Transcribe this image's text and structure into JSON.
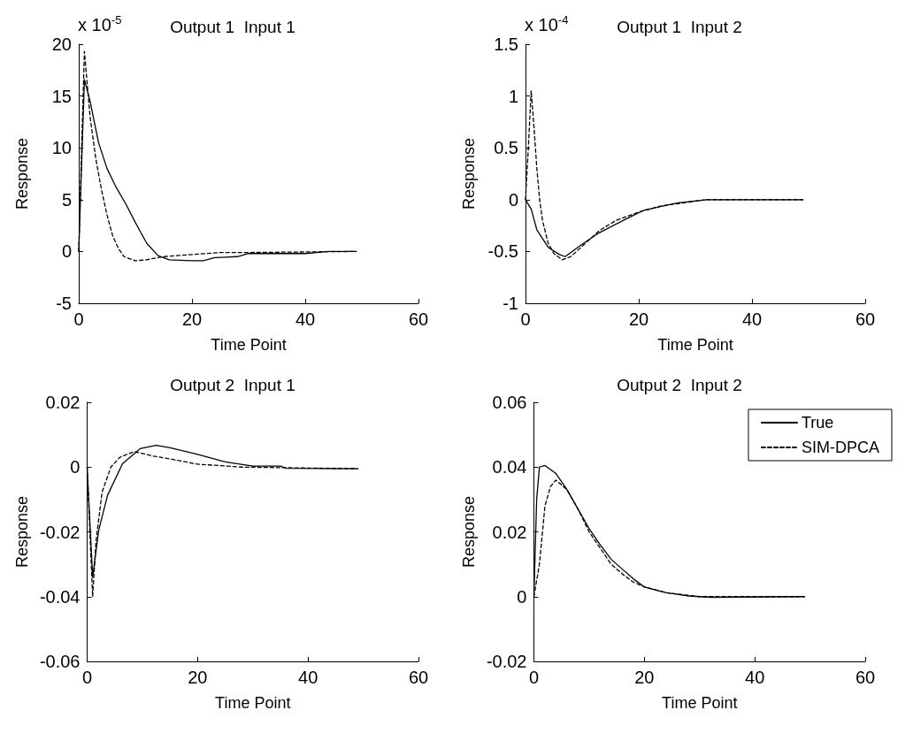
{
  "chart_data": [
    {
      "type": "line",
      "title": "Output 1  Input 1",
      "xlabel": "Time Point",
      "ylabel": "Response",
      "annotations": [
        "x 10$^{-5}$"
      ],
      "xlim": [
        0,
        60
      ],
      "xticks": [
        0,
        20,
        40,
        60
      ],
      "ylim": [
        -5,
        20
      ],
      "yticks": [
        -5,
        0,
        5,
        10,
        15,
        20
      ],
      "grid": false,
      "legend": false,
      "series": [
        {
          "color": "#000000",
          "line_style": "solid",
          "x": [
            0,
            1,
            2,
            3.5,
            5,
            6.5,
            8.3,
            10,
            12,
            14,
            16,
            20,
            22,
            24,
            28,
            30,
            40,
            44,
            49
          ],
          "values": [
            0,
            16.6,
            14.5,
            10.5,
            8,
            6.3,
            4.6,
            2.8,
            0.8,
            -0.4,
            -0.8,
            -0.9,
            -0.9,
            -0.6,
            -0.5,
            -0.2,
            -0.2,
            0,
            0
          ]
        },
        {
          "color": "#000000",
          "line_style": "dashed",
          "x": [
            0,
            1,
            2,
            3,
            4,
            5,
            6,
            7,
            8,
            10,
            12,
            15,
            20,
            25,
            30,
            49
          ],
          "values": [
            0,
            19.3,
            13,
            9,
            6,
            3.5,
            1.5,
            0.3,
            -0.5,
            -0.9,
            -0.8,
            -0.5,
            -0.3,
            -0.1,
            -0.1,
            0
          ]
        }
      ]
    },
    {
      "type": "line",
      "title": "Output 1  Input 2",
      "xlabel": "Time Point",
      "ylabel": "Response",
      "annotations": [
        "x 10$^{-4}$"
      ],
      "xlim": [
        0,
        60
      ],
      "xticks": [
        0,
        20,
        40,
        60
      ],
      "ylim": [
        -1,
        1.5
      ],
      "yticks": [
        -1,
        -0.5,
        0,
        0.5,
        1,
        1.5
      ],
      "grid": false,
      "legend": false,
      "series": [
        {
          "color": "#000000",
          "line_style": "solid",
          "x": [
            0,
            1,
            2,
            4,
            6,
            7,
            10,
            13,
            18,
            21,
            27,
            32,
            49
          ],
          "values": [
            0,
            -0.09,
            -0.29,
            -0.46,
            -0.53,
            -0.55,
            -0.43,
            -0.32,
            -0.18,
            -0.1,
            -0.03,
            0,
            0
          ]
        },
        {
          "color": "#000000",
          "line_style": "dashed",
          "x": [
            0,
            0.5,
            1,
            1.5,
            2,
            2.5,
            3,
            4,
            5,
            6.5,
            8,
            10,
            13,
            16,
            20,
            24,
            28,
            32,
            49
          ],
          "values": [
            0,
            0.5,
            1.05,
            0.7,
            0.3,
            0,
            -0.2,
            -0.42,
            -0.52,
            -0.58,
            -0.55,
            -0.45,
            -0.3,
            -0.2,
            -0.12,
            -0.06,
            -0.03,
            0,
            0
          ]
        }
      ]
    },
    {
      "type": "line",
      "title": "Output 2  Input 1",
      "xlabel": "Time Point",
      "ylabel": "Response",
      "xlim": [
        0,
        60
      ],
      "xticks": [
        0,
        20,
        40,
        60
      ],
      "ylim": [
        -0.06,
        0.02
      ],
      "yticks": [
        -0.06,
        -0.04,
        -0.02,
        0,
        0.02
      ],
      "grid": false,
      "legend": false,
      "series": [
        {
          "color": "#000000",
          "line_style": "solid",
          "x": [
            0,
            1,
            2.1,
            3.7,
            6.4,
            9.6,
            12.5,
            15,
            20,
            25,
            30,
            35,
            36,
            49
          ],
          "values": [
            0,
            -0.034,
            -0.0195,
            -0.0087,
            0.001,
            0.0057,
            0.0067,
            0.006,
            0.0039,
            0.0016,
            0.0003,
            0.0003,
            -0.0004,
            -0.0005
          ]
        },
        {
          "color": "#000000",
          "line_style": "dashed",
          "x": [
            0,
            1,
            1.6,
            2.7,
            4.3,
            5.9,
            8.5,
            12,
            16,
            20,
            28,
            49
          ],
          "values": [
            0,
            -0.04,
            -0.023,
            -0.0078,
            0,
            0.003,
            0.0048,
            0.0034,
            0.0022,
            0.0009,
            0,
            -0.0005
          ]
        }
      ]
    },
    {
      "type": "line",
      "title": "Output 2  Input 2",
      "xlabel": "Time Point",
      "ylabel": "Response",
      "xlim": [
        0,
        60
      ],
      "xticks": [
        0,
        20,
        40,
        60
      ],
      "ylim": [
        -0.02,
        0.06
      ],
      "yticks": [
        -0.02,
        0,
        0.02,
        0.04,
        0.06
      ],
      "grid": false,
      "legend": "top right",
      "series": [
        {
          "name": "True",
          "color": "#000000",
          "line_style": "solid",
          "x": [
            0,
            0.5,
            1,
            2,
            4,
            6,
            8,
            10,
            12,
            14,
            16,
            18,
            20,
            24,
            28,
            32,
            49
          ],
          "values": [
            0,
            0.03,
            0.04,
            0.0405,
            0.038,
            0.033,
            0.027,
            0.021,
            0.016,
            0.0115,
            0.0085,
            0.0055,
            0.003,
            0.0012,
            0.0002,
            -0.0002,
            0
          ]
        },
        {
          "name": "SIM-DPCA",
          "color": "#000000",
          "line_style": "dashed",
          "x": [
            0,
            1,
            2,
            3,
            4,
            6,
            8,
            10,
            12,
            14,
            16,
            18,
            20,
            24,
            30,
            49
          ],
          "values": [
            0,
            0.01,
            0.028,
            0.034,
            0.036,
            0.033,
            0.027,
            0.02,
            0.015,
            0.01,
            0.007,
            0.0045,
            0.003,
            0.0012,
            0,
            0
          ]
        }
      ]
    }
  ]
}
